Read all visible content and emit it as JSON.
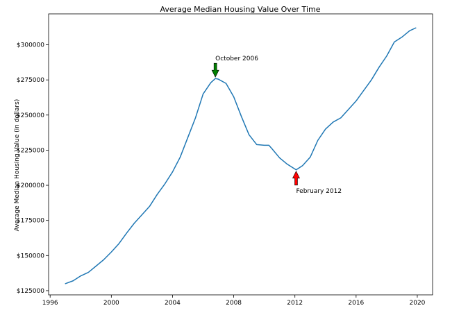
{
  "chart_data": {
    "type": "line",
    "title": "Average Median Housing Value Over Time",
    "xlabel": "",
    "ylabel": "Average Median Housing Value (in dollars)",
    "xlim": [
      1995.9,
      2021.0
    ],
    "ylim": [
      122000,
      322000
    ],
    "xticks": [
      1996,
      2000,
      2004,
      2008,
      2012,
      2016,
      2020
    ],
    "xtick_labels": [
      "1996",
      "2000",
      "2004",
      "2008",
      "2012",
      "2016",
      "2020"
    ],
    "yticks": [
      125000,
      150000,
      175000,
      200000,
      225000,
      250000,
      275000,
      300000
    ],
    "ytick_labels": [
      "$125000",
      "$150000",
      "$175000",
      "$200000",
      "$225000",
      "$250000",
      "$275000",
      "$300000"
    ],
    "grid": false,
    "series": [
      {
        "color": "#1f77b4",
        "x": [
          1997.0,
          1997.5,
          1998.0,
          1998.5,
          1999.0,
          1999.5,
          2000.0,
          2000.5,
          2001.0,
          2001.5,
          2002.0,
          2002.5,
          2003.0,
          2003.5,
          2004.0,
          2004.5,
          2005.0,
          2005.5,
          2006.0,
          2006.5,
          2006.8,
          2007.0,
          2007.5,
          2008.0,
          2008.5,
          2009.0,
          2009.5,
          2010.0,
          2010.3,
          2010.5,
          2011.0,
          2011.5,
          2012.08,
          2012.5,
          2013.0,
          2013.5,
          2014.0,
          2014.5,
          2015.0,
          2015.5,
          2016.0,
          2016.5,
          2017.0,
          2017.5,
          2018.0,
          2018.5,
          2019.0,
          2019.5,
          2019.9
        ],
        "y": [
          130000,
          132000,
          135500,
          138000,
          142500,
          147000,
          152500,
          158500,
          166000,
          173000,
          179000,
          185000,
          193500,
          201000,
          209500,
          220000,
          234000,
          248000,
          265000,
          273000,
          276000,
          275500,
          272500,
          263000,
          249000,
          236000,
          229000,
          228500,
          228500,
          226000,
          219500,
          215000,
          211000,
          214000,
          220000,
          232000,
          240000,
          245000,
          248000,
          254000,
          260000,
          267500,
          275000,
          284000,
          292000,
          302000,
          305500,
          310000,
          312000
        ]
      }
    ],
    "annotations": [
      {
        "text": "October 2006",
        "x": 2006.8,
        "y": 276000,
        "arrow_color": "#008000",
        "direction": "down"
      },
      {
        "text": "February 2012",
        "x": 2012.08,
        "y": 211000,
        "arrow_color": "#ff0000",
        "direction": "up"
      }
    ]
  }
}
